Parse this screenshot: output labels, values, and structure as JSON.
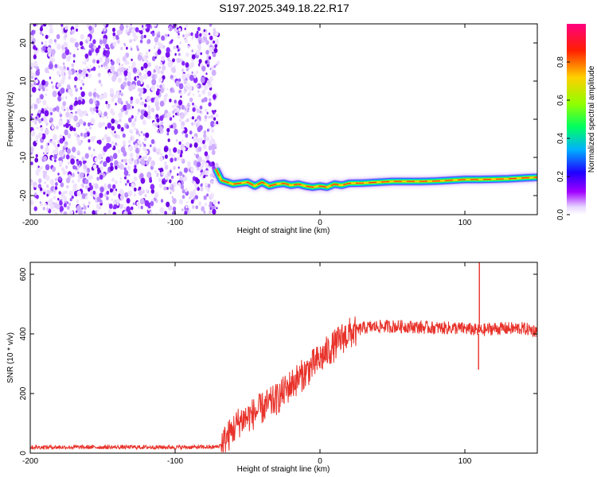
{
  "chart_data": [
    {
      "type": "heatmap",
      "title": "S197.2025.349.18.22.R17",
      "xlabel": "Height of straight line (km)",
      "ylabel": "Frequency (Hz)",
      "xlim": [
        -200,
        150
      ],
      "ylim": [
        -25,
        25
      ],
      "xticks": [
        -200,
        -100,
        0,
        100
      ],
      "xtick_labels": [
        "-200",
        "-100",
        "0",
        "100"
      ],
      "yticks": [
        -20,
        -10,
        0,
        10,
        20
      ],
      "ytick_labels": [
        "-20",
        "-10",
        "0",
        "10",
        "20"
      ],
      "colorbar": {
        "label": "Normalized spectral amplitude",
        "range": [
          0,
          1
        ],
        "ticks": [
          0,
          0.2,
          0.4,
          0.6,
          0.8
        ],
        "tick_labels": [
          "0.0",
          "0.2",
          "0.4",
          "0.6",
          "0.8"
        ],
        "colors": [
          "#ffffff",
          "#a000ff",
          "#2000ff",
          "#00b0ff",
          "#00ff60",
          "#90ff00",
          "#ffd000",
          "#ff2000",
          "#ff0080"
        ]
      },
      "noise_region_x": [
        -200,
        -72
      ],
      "signal_trace": {
        "x": [
          -72,
          -68,
          -60,
          -50,
          -45,
          -40,
          -35,
          -30,
          -25,
          -20,
          -15,
          -10,
          -5,
          0,
          5,
          10,
          15,
          20,
          30,
          40,
          50,
          60,
          70,
          80,
          90,
          100,
          110,
          120,
          130,
          140,
          150
        ],
        "freq": [
          -13,
          -16,
          -17,
          -16.5,
          -17.5,
          -16.5,
          -17.5,
          -17,
          -16.8,
          -17.3,
          -17,
          -17.5,
          -17.8,
          -17.5,
          -17.8,
          -17,
          -17.3,
          -16.8,
          -16.7,
          -16.5,
          -16.3,
          -16.3,
          -16.3,
          -16.2,
          -16,
          -15.8,
          -15.8,
          -15.7,
          -15.6,
          -15.4,
          -15.2
        ]
      }
    },
    {
      "type": "line",
      "xlabel": "Height of straight line (km)",
      "ylabel": "SNR (10 * v/v)",
      "xlim": [
        -200,
        150
      ],
      "ylim": [
        0,
        640
      ],
      "xticks": [
        -200,
        -100,
        0,
        100
      ],
      "xtick_labels": [
        "-200",
        "-100",
        "0",
        "100"
      ],
      "yticks": [
        0,
        200,
        400,
        600
      ],
      "ytick_labels": [
        "0",
        "200",
        "400",
        "600"
      ],
      "series": [
        {
          "name": "SNR",
          "color": "#e8322a",
          "x": [
            -200,
            -150,
            -100,
            -75,
            -70,
            -65,
            -60,
            -55,
            -50,
            -45,
            -40,
            -35,
            -30,
            -25,
            -20,
            -15,
            -10,
            -5,
            0,
            5,
            10,
            15,
            20,
            25,
            30,
            40,
            50,
            60,
            70,
            80,
            90,
            100,
            105,
            110,
            115,
            120,
            130,
            140,
            150
          ],
          "values": [
            20,
            20,
            20,
            20,
            22,
            45,
            80,
            110,
            120,
            135,
            150,
            165,
            180,
            205,
            230,
            250,
            270,
            295,
            315,
            340,
            360,
            385,
            400,
            410,
            420,
            425,
            425,
            425,
            422,
            420,
            420,
            418,
            415,
            410,
            415,
            418,
            418,
            418,
            410
          ]
        }
      ],
      "annotations": [
        {
          "x": 110,
          "value": 640,
          "note": "spike max"
        },
        {
          "x": 110,
          "value": 280,
          "note": "spike min"
        }
      ]
    }
  ]
}
